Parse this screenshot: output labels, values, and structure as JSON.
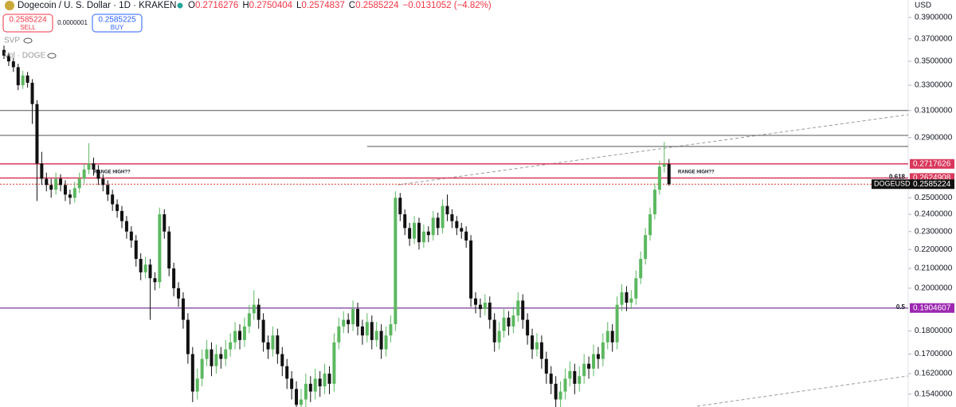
{
  "header": {
    "title": "Dogecoin / U. S. Dollar · 1D · KRAKEN",
    "ohlc": [
      {
        "label": "O",
        "value": "0.2716276"
      },
      {
        "label": "H",
        "value": "0.2750404"
      },
      {
        "label": "L",
        "value": "0.2574837"
      },
      {
        "label": "C",
        "value": "0.2585224"
      }
    ],
    "change": "−0.0131052 (−4.82%)",
    "sell": {
      "price": "0.2585224",
      "label": "SELL"
    },
    "spread": "0.0000001",
    "buy": {
      "price": "0.2585225",
      "label": "BUY"
    },
    "indicators": [
      "SVP",
      "Vol · DOGE"
    ],
    "currency": "USD"
  },
  "chart_data": {
    "type": "candlestick",
    "log_scale": true,
    "up_color": "#5cb860",
    "down_color": "#111111",
    "ylim": [
      0.1492,
      0.4072
    ],
    "yticks": [
      {
        "value": 0.39,
        "label": "0.3900000"
      },
      {
        "value": 0.37,
        "label": "0.3700000"
      },
      {
        "value": 0.35,
        "label": "0.3500000"
      },
      {
        "value": 0.33,
        "label": "0.3300000"
      },
      {
        "value": 0.31,
        "label": "0.3100000"
      },
      {
        "value": 0.29,
        "label": "0.2900000"
      },
      {
        "value": 0.25,
        "label": "0.2500000"
      },
      {
        "value": 0.24,
        "label": "0.2400000"
      },
      {
        "value": 0.23,
        "label": "0.2300000"
      },
      {
        "value": 0.22,
        "label": "0.2200000"
      },
      {
        "value": 0.21,
        "label": "0.2100000"
      },
      {
        "value": 0.2,
        "label": "0.2000000"
      },
      {
        "value": 0.18,
        "label": "0.1800000"
      },
      {
        "value": 0.17,
        "label": "0.1700000"
      },
      {
        "value": 0.162,
        "label": "0.1620000"
      },
      {
        "value": 0.154,
        "label": "0.1540000"
      }
    ],
    "levels": [
      {
        "value": 0.31,
        "color": "#555555"
      },
      {
        "value": 0.2916,
        "color": "#555555"
      },
      {
        "value": 0.2837,
        "color": "#555555",
        "from": 77
      }
    ],
    "price_lines": [
      {
        "value": 0.2717626,
        "color": "#d9385c",
        "line_color": "#d9385c"
      },
      {
        "value": 0.2624908,
        "color": "#d9385c",
        "line_color": "#d9385c",
        "fib": "0.618"
      },
      {
        "value": 0.2585224,
        "color": "#111111",
        "line_color": "#e53935",
        "name": "DOGEUSD",
        "dotted": true
      },
      {
        "value": 0.1904607,
        "color": "#9c27b0",
        "line_color": "#8e5aa8",
        "fib": "0.5"
      }
    ],
    "annotations": [
      "RANGE HIGH??",
      "RANGE HIGH??"
    ],
    "candles": [
      [
        0.36,
        0.364,
        0.352,
        0.355
      ],
      [
        0.355,
        0.358,
        0.346,
        0.35
      ],
      [
        0.35,
        0.353,
        0.341,
        0.345
      ],
      [
        0.345,
        0.348,
        0.326,
        0.33
      ],
      [
        0.33,
        0.342,
        0.327,
        0.338
      ],
      [
        0.338,
        0.341,
        0.328,
        0.332
      ],
      [
        0.332,
        0.335,
        0.3,
        0.315
      ],
      [
        0.315,
        0.318,
        0.248,
        0.272
      ],
      [
        0.272,
        0.28,
        0.258,
        0.262
      ],
      [
        0.262,
        0.266,
        0.254,
        0.258
      ],
      [
        0.258,
        0.262,
        0.25,
        0.255
      ],
      [
        0.255,
        0.266,
        0.252,
        0.262
      ],
      [
        0.262,
        0.265,
        0.254,
        0.258
      ],
      [
        0.258,
        0.261,
        0.248,
        0.252
      ],
      [
        0.252,
        0.255,
        0.246,
        0.25
      ],
      [
        0.25,
        0.26,
        0.247,
        0.256
      ],
      [
        0.256,
        0.266,
        0.253,
        0.262
      ],
      [
        0.262,
        0.272,
        0.259,
        0.268
      ],
      [
        0.268,
        0.286,
        0.265,
        0.272
      ],
      [
        0.272,
        0.276,
        0.264,
        0.268
      ],
      [
        0.268,
        0.271,
        0.258,
        0.262
      ],
      [
        0.262,
        0.265,
        0.254,
        0.258
      ],
      [
        0.258,
        0.261,
        0.248,
        0.252
      ],
      [
        0.252,
        0.255,
        0.242,
        0.246
      ],
      [
        0.246,
        0.249,
        0.238,
        0.242
      ],
      [
        0.242,
        0.245,
        0.232,
        0.236
      ],
      [
        0.236,
        0.239,
        0.226,
        0.23
      ],
      [
        0.23,
        0.233,
        0.221,
        0.225
      ],
      [
        0.225,
        0.228,
        0.211,
        0.215
      ],
      [
        0.215,
        0.218,
        0.204,
        0.208
      ],
      [
        0.208,
        0.216,
        0.205,
        0.212
      ],
      [
        0.212,
        0.215,
        0.185,
        0.205
      ],
      [
        0.205,
        0.208,
        0.199,
        0.203
      ],
      [
        0.203,
        0.244,
        0.2,
        0.24
      ],
      [
        0.24,
        0.243,
        0.226,
        0.23
      ],
      [
        0.23,
        0.233,
        0.206,
        0.21
      ],
      [
        0.21,
        0.213,
        0.196,
        0.2
      ],
      [
        0.2,
        0.203,
        0.191,
        0.195
      ],
      [
        0.195,
        0.198,
        0.181,
        0.185
      ],
      [
        0.185,
        0.188,
        0.166,
        0.17
      ],
      [
        0.17,
        0.173,
        0.151,
        0.155
      ],
      [
        0.155,
        0.164,
        0.152,
        0.16
      ],
      [
        0.16,
        0.172,
        0.157,
        0.168
      ],
      [
        0.168,
        0.176,
        0.165,
        0.172
      ],
      [
        0.172,
        0.175,
        0.161,
        0.165
      ],
      [
        0.165,
        0.174,
        0.162,
        0.17
      ],
      [
        0.17,
        0.173,
        0.164,
        0.168
      ],
      [
        0.168,
        0.176,
        0.165,
        0.172
      ],
      [
        0.172,
        0.179,
        0.169,
        0.175
      ],
      [
        0.175,
        0.184,
        0.172,
        0.18
      ],
      [
        0.18,
        0.183,
        0.172,
        0.176
      ],
      [
        0.176,
        0.186,
        0.173,
        0.182
      ],
      [
        0.182,
        0.192,
        0.179,
        0.188
      ],
      [
        0.188,
        0.199,
        0.185,
        0.192
      ],
      [
        0.192,
        0.195,
        0.181,
        0.185
      ],
      [
        0.185,
        0.188,
        0.171,
        0.175
      ],
      [
        0.175,
        0.178,
        0.168,
        0.172
      ],
      [
        0.172,
        0.182,
        0.169,
        0.178
      ],
      [
        0.178,
        0.181,
        0.166,
        0.17
      ],
      [
        0.17,
        0.173,
        0.161,
        0.165
      ],
      [
        0.165,
        0.168,
        0.156,
        0.16
      ],
      [
        0.16,
        0.163,
        0.152,
        0.156
      ],
      [
        0.156,
        0.159,
        0.146,
        0.15
      ],
      [
        0.15,
        0.156,
        0.147,
        0.152
      ],
      [
        0.152,
        0.162,
        0.149,
        0.158
      ],
      [
        0.158,
        0.161,
        0.151,
        0.155
      ],
      [
        0.155,
        0.164,
        0.152,
        0.16
      ],
      [
        0.16,
        0.163,
        0.153,
        0.157
      ],
      [
        0.157,
        0.166,
        0.154,
        0.162
      ],
      [
        0.162,
        0.165,
        0.154,
        0.158
      ],
      [
        0.158,
        0.179,
        0.155,
        0.175
      ],
      [
        0.175,
        0.186,
        0.172,
        0.182
      ],
      [
        0.182,
        0.189,
        0.179,
        0.185
      ],
      [
        0.185,
        0.188,
        0.179,
        0.183
      ],
      [
        0.183,
        0.194,
        0.18,
        0.19
      ],
      [
        0.19,
        0.193,
        0.178,
        0.182
      ],
      [
        0.182,
        0.185,
        0.174,
        0.178
      ],
      [
        0.178,
        0.188,
        0.175,
        0.184
      ],
      [
        0.184,
        0.187,
        0.172,
        0.176
      ],
      [
        0.176,
        0.184,
        0.173,
        0.18
      ],
      [
        0.18,
        0.183,
        0.168,
        0.172
      ],
      [
        0.172,
        0.182,
        0.169,
        0.178
      ],
      [
        0.178,
        0.187,
        0.175,
        0.183
      ],
      [
        0.183,
        0.254,
        0.18,
        0.25
      ],
      [
        0.25,
        0.253,
        0.236,
        0.24
      ],
      [
        0.24,
        0.243,
        0.228,
        0.232
      ],
      [
        0.232,
        0.235,
        0.222,
        0.226
      ],
      [
        0.226,
        0.239,
        0.223,
        0.235
      ],
      [
        0.235,
        0.238,
        0.22,
        0.224
      ],
      [
        0.224,
        0.234,
        0.221,
        0.23
      ],
      [
        0.23,
        0.233,
        0.224,
        0.228
      ],
      [
        0.228,
        0.242,
        0.225,
        0.238
      ],
      [
        0.238,
        0.241,
        0.228,
        0.232
      ],
      [
        0.232,
        0.249,
        0.229,
        0.245
      ],
      [
        0.245,
        0.252,
        0.236,
        0.24
      ],
      [
        0.24,
        0.243,
        0.232,
        0.236
      ],
      [
        0.236,
        0.239,
        0.228,
        0.232
      ],
      [
        0.232,
        0.235,
        0.226,
        0.23
      ],
      [
        0.23,
        0.233,
        0.221,
        0.225
      ],
      [
        0.225,
        0.228,
        0.191,
        0.195
      ],
      [
        0.195,
        0.198,
        0.188,
        0.192
      ],
      [
        0.192,
        0.195,
        0.186,
        0.19
      ],
      [
        0.19,
        0.197,
        0.187,
        0.193
      ],
      [
        0.193,
        0.196,
        0.181,
        0.185
      ],
      [
        0.185,
        0.188,
        0.171,
        0.175
      ],
      [
        0.175,
        0.184,
        0.172,
        0.18
      ],
      [
        0.18,
        0.19,
        0.177,
        0.186
      ],
      [
        0.186,
        0.189,
        0.178,
        0.182
      ],
      [
        0.182,
        0.191,
        0.179,
        0.187
      ],
      [
        0.187,
        0.198,
        0.184,
        0.194
      ],
      [
        0.194,
        0.197,
        0.181,
        0.185
      ],
      [
        0.185,
        0.188,
        0.174,
        0.178
      ],
      [
        0.178,
        0.181,
        0.168,
        0.172
      ],
      [
        0.172,
        0.179,
        0.169,
        0.175
      ],
      [
        0.175,
        0.178,
        0.164,
        0.168
      ],
      [
        0.168,
        0.171,
        0.158,
        0.162
      ],
      [
        0.162,
        0.165,
        0.154,
        0.158
      ],
      [
        0.158,
        0.161,
        0.148,
        0.152
      ],
      [
        0.152,
        0.159,
        0.149,
        0.155
      ],
      [
        0.155,
        0.164,
        0.152,
        0.16
      ],
      [
        0.16,
        0.167,
        0.157,
        0.163
      ],
      [
        0.163,
        0.166,
        0.154,
        0.158
      ],
      [
        0.158,
        0.165,
        0.155,
        0.161
      ],
      [
        0.161,
        0.17,
        0.158,
        0.166
      ],
      [
        0.166,
        0.169,
        0.16,
        0.164
      ],
      [
        0.164,
        0.174,
        0.161,
        0.17
      ],
      [
        0.17,
        0.173,
        0.164,
        0.168
      ],
      [
        0.168,
        0.179,
        0.165,
        0.175
      ],
      [
        0.175,
        0.184,
        0.172,
        0.18
      ],
      [
        0.18,
        0.183,
        0.171,
        0.175
      ],
      [
        0.175,
        0.196,
        0.172,
        0.192
      ],
      [
        0.192,
        0.202,
        0.189,
        0.198
      ],
      [
        0.198,
        0.201,
        0.189,
        0.193
      ],
      [
        0.193,
        0.199,
        0.19,
        0.195
      ],
      [
        0.195,
        0.209,
        0.192,
        0.205
      ],
      [
        0.205,
        0.219,
        0.202,
        0.215
      ],
      [
        0.215,
        0.232,
        0.212,
        0.228
      ],
      [
        0.228,
        0.244,
        0.225,
        0.24
      ],
      [
        0.24,
        0.259,
        0.237,
        0.255
      ],
      [
        0.255,
        0.274,
        0.252,
        0.27
      ],
      [
        0.27,
        0.287,
        0.266,
        0.2716276
      ],
      [
        0.2716276,
        0.2750404,
        0.2574837,
        0.2585224
      ]
    ]
  }
}
